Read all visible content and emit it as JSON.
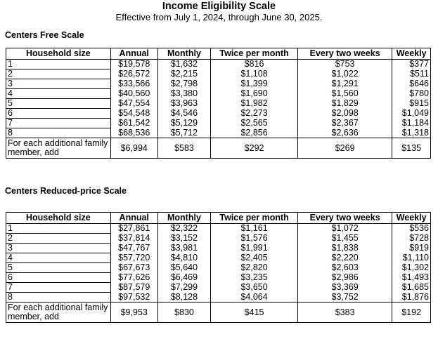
{
  "title": "Income Eligibility Scale",
  "subtitle": "Effective from July 1, 2024, through June 30, 2025.",
  "columns": [
    "Household size",
    "Annual",
    "Monthly",
    "Twice per month",
    "Every two weeks",
    "Weekly"
  ],
  "free_scale": {
    "heading": "Centers Free Scale",
    "rows": [
      [
        "1",
        "$19,578",
        "$1,632",
        "$816",
        "$753",
        "$377"
      ],
      [
        "2",
        "$26,572",
        "$2,215",
        "$1,108",
        "$1,022",
        "$511"
      ],
      [
        "3",
        "$33,566",
        "$2,798",
        "$1,399",
        "$1,291",
        "$646"
      ],
      [
        "4",
        "$40,560",
        "$3,380",
        "$1,690",
        "$1,560",
        "$780"
      ],
      [
        "5",
        "$47,554",
        "$3,963",
        "$1,982",
        "$1,829",
        "$915"
      ],
      [
        "6",
        "$54,548",
        "$4,546",
        "$2,273",
        "$2,098",
        "$1,049"
      ],
      [
        "7",
        "$61,542",
        "$5,129",
        "$2,565",
        "$2,367",
        "$1,184"
      ],
      [
        "8",
        "$68,536",
        "$5,712",
        "$2,856",
        "$2,636",
        "$1,318"
      ]
    ],
    "additional": [
      "For each additional family member, add",
      "$6,994",
      "$583",
      "$292",
      "$269",
      "$135"
    ]
  },
  "reduced_scale": {
    "heading": "Centers Reduced-price Scale",
    "rows": [
      [
        "1",
        "$27,861",
        "$2,322",
        "$1,161",
        "$1,072",
        "$536"
      ],
      [
        "2",
        "$37,814",
        "$3,152",
        "$1,576",
        "$1,455",
        "$728"
      ],
      [
        "3",
        "$47,767",
        "$3,981",
        "$1,991",
        "$1,838",
        "$919"
      ],
      [
        "4",
        "$57,720",
        "$4,810",
        "$2,405",
        "$2,220",
        "$1,110"
      ],
      [
        "5",
        "$67,673",
        "$5,640",
        "$2,820",
        "$2,603",
        "$1,302"
      ],
      [
        "6",
        "$77,626",
        "$6,469",
        "$3,235",
        "$2,986",
        "$1,493"
      ],
      [
        "7",
        "$87,579",
        "$7,299",
        "$3,650",
        "$3,369",
        "$1,685"
      ],
      [
        "8",
        "$97,532",
        "$8,128",
        "$4,064",
        "$3,752",
        "$1,876"
      ]
    ],
    "additional": [
      "For each additional family member, add",
      "$9,953",
      "$830",
      "$415",
      "$383",
      "$192"
    ]
  }
}
